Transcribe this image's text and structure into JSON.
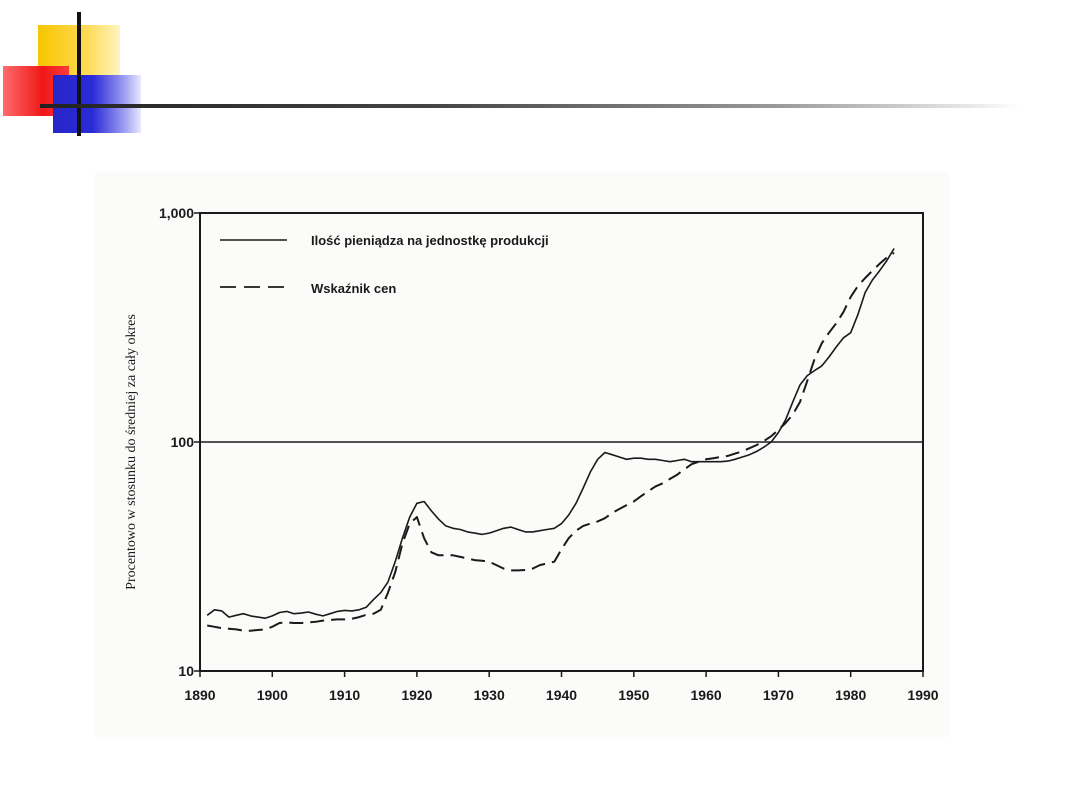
{
  "chart_data": {
    "type": "line",
    "ylabel": "Procentowo w stosunku do średniej za cały okres",
    "xlabel": "",
    "xlim": [
      1890,
      1990
    ],
    "ylim": [
      10,
      1000
    ],
    "y_scale": "log",
    "grid": false,
    "reference_line": 100,
    "legend_position": "top-left",
    "x_ticks": [
      "1890",
      "1900",
      "1910",
      "1920",
      "1930",
      "1940",
      "1950",
      "1960",
      "1970",
      "1980",
      "1990"
    ],
    "y_ticks": [
      {
        "value": 10,
        "label": "10"
      },
      {
        "value": 100,
        "label": "100"
      },
      {
        "value": 1000,
        "label": "1,000"
      }
    ],
    "series": [
      {
        "name": "Ilość pieniądza na jednostkę produkcji",
        "style": "solid",
        "color": "#1a1a1a",
        "x": [
          1891,
          1892,
          1893,
          1894,
          1895,
          1896,
          1897,
          1898,
          1899,
          1900,
          1901,
          1902,
          1903,
          1904,
          1905,
          1906,
          1907,
          1908,
          1909,
          1910,
          1911,
          1912,
          1913,
          1914,
          1915,
          1916,
          1917,
          1918,
          1919,
          1920,
          1921,
          1922,
          1923,
          1924,
          1925,
          1926,
          1927,
          1928,
          1929,
          1930,
          1931,
          1932,
          1933,
          1934,
          1935,
          1936,
          1937,
          1938,
          1939,
          1940,
          1941,
          1942,
          1943,
          1944,
          1945,
          1946,
          1947,
          1948,
          1949,
          1950,
          1951,
          1952,
          1953,
          1954,
          1955,
          1956,
          1957,
          1958,
          1959,
          1960,
          1961,
          1962,
          1963,
          1964,
          1965,
          1966,
          1967,
          1968,
          1969,
          1970,
          1971,
          1972,
          1973,
          1974,
          1975,
          1976,
          1977,
          1978,
          1979,
          1980,
          1981,
          1982,
          1983,
          1984,
          1985,
          1986
        ],
        "y": [
          17.5,
          18.5,
          18.3,
          17.2,
          17.5,
          17.8,
          17.4,
          17.2,
          17.0,
          17.4,
          18.0,
          18.2,
          17.8,
          17.9,
          18.1,
          17.7,
          17.4,
          17.8,
          18.2,
          18.4,
          18.3,
          18.5,
          19.0,
          20.5,
          22.0,
          24.5,
          30.0,
          38.0,
          47.0,
          54.0,
          55.0,
          50.0,
          46.0,
          43.0,
          42.0,
          41.5,
          40.5,
          40.0,
          39.5,
          40.0,
          41.0,
          42.0,
          42.5,
          41.5,
          40.5,
          40.5,
          41.0,
          41.5,
          42.0,
          44.0,
          48.0,
          54.0,
          63.0,
          74.0,
          84.0,
          90.0,
          88.0,
          86.0,
          84.0,
          85.0,
          85.0,
          84.0,
          84.0,
          83.0,
          82.0,
          83.0,
          84.0,
          82.0,
          82.0,
          82.0,
          82.0,
          82.0,
          82.5,
          84.0,
          86.0,
          88.0,
          91.0,
          95.0,
          100.0,
          110.0,
          125.0,
          150.0,
          178.0,
          195.0,
          205.0,
          215.0,
          235.0,
          260.0,
          285.0,
          300.0,
          360.0,
          450.0,
          510.0,
          560.0,
          620.0,
          700.0
        ]
      },
      {
        "name": "Wskaźnik cen",
        "style": "dashed",
        "color": "#1a1a1a",
        "x": [
          1891,
          1892,
          1893,
          1894,
          1895,
          1896,
          1897,
          1898,
          1899,
          1900,
          1901,
          1902,
          1903,
          1904,
          1905,
          1906,
          1907,
          1908,
          1909,
          1910,
          1911,
          1912,
          1913,
          1914,
          1915,
          1916,
          1917,
          1918,
          1919,
          1920,
          1921,
          1922,
          1923,
          1924,
          1925,
          1926,
          1927,
          1928,
          1929,
          1930,
          1931,
          1932,
          1933,
          1934,
          1935,
          1936,
          1937,
          1938,
          1939,
          1940,
          1941,
          1942,
          1943,
          1944,
          1945,
          1946,
          1947,
          1948,
          1949,
          1950,
          1951,
          1952,
          1953,
          1954,
          1955,
          1956,
          1957,
          1958,
          1959,
          1960,
          1961,
          1962,
          1963,
          1964,
          1965,
          1966,
          1967,
          1968,
          1969,
          1970,
          1971,
          1972,
          1973,
          1974,
          1975,
          1976,
          1977,
          1978,
          1979,
          1980,
          1981,
          1982,
          1983,
          1984,
          1985,
          1986
        ],
        "y": [
          15.8,
          15.6,
          15.4,
          15.3,
          15.2,
          15.0,
          15.0,
          15.1,
          15.2,
          15.6,
          16.2,
          16.3,
          16.2,
          16.2,
          16.3,
          16.4,
          16.6,
          16.7,
          16.8,
          16.8,
          16.9,
          17.2,
          17.6,
          17.8,
          18.5,
          22.0,
          27.0,
          36.0,
          44.0,
          47.0,
          38.0,
          33.0,
          32.0,
          32.0,
          32.0,
          31.5,
          31.0,
          30.5,
          30.3,
          30.0,
          29.0,
          28.0,
          27.5,
          27.5,
          27.6,
          28.0,
          29.0,
          29.5,
          30.0,
          34.0,
          38.0,
          41.0,
          43.0,
          44.0,
          45.0,
          46.5,
          49.0,
          51.0,
          53.0,
          55.0,
          58.0,
          61.0,
          64.0,
          66.0,
          69.0,
          72.0,
          76.0,
          80.0,
          82.0,
          84.0,
          85.0,
          86.0,
          87.0,
          89.0,
          91.0,
          94.0,
          97.0,
          101.0,
          106.0,
          113.0,
          121.0,
          132.0,
          150.0,
          185.0,
          230.0,
          270.0,
          300.0,
          330.0,
          370.0,
          430.0,
          480.0,
          520.0,
          560.0,
          600.0,
          640.0,
          670.0
        ]
      }
    ]
  }
}
